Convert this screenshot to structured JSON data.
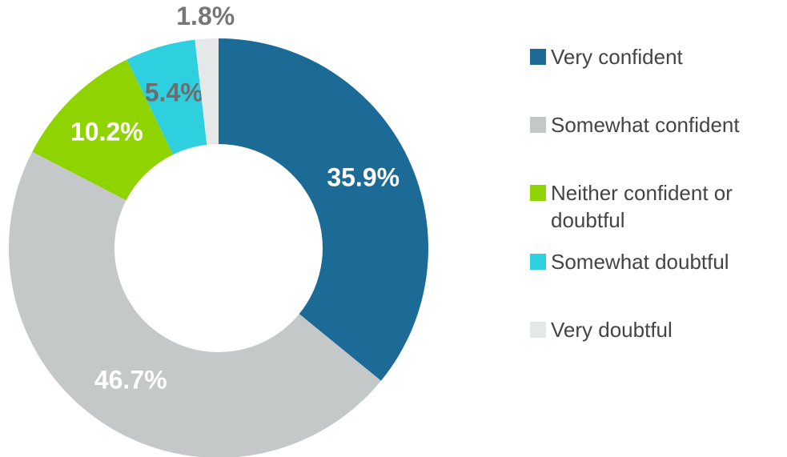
{
  "chart_data": {
    "type": "donut",
    "categories": [
      "Very confident",
      "Somewhat confident",
      "Neither confident or doubtful",
      "Somewhat doubtful",
      "Very doubtful"
    ],
    "values": [
      35.9,
      46.7,
      10.2,
      5.4,
      1.8
    ],
    "value_labels": [
      "35.9%",
      "46.7%",
      "10.2%",
      "5.4%",
      "1.8%"
    ],
    "colors": [
      "#1c6a96",
      "#c4c8c8",
      "#8fd400",
      "#2ecfdf",
      "#e4e8e8"
    ],
    "label_colors": [
      "#ffffff",
      "#ffffff",
      "#ffffff",
      "#6d6d6d",
      "#777777"
    ],
    "legend": "right"
  }
}
